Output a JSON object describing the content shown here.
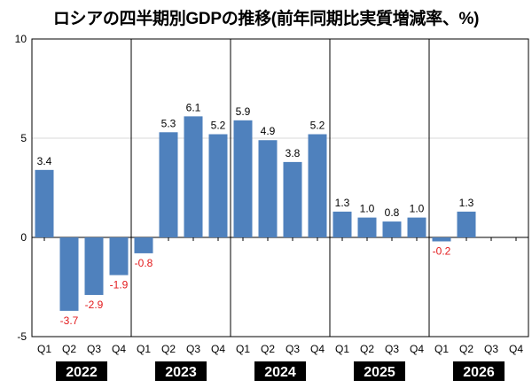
{
  "chart_data": {
    "type": "bar",
    "title": "ロシアの四半期別GDPの推移(前年同期比実質増減率、%)",
    "xlabel": "",
    "ylabel": "",
    "ylim": [
      -5,
      10
    ],
    "yticks": [
      -5,
      0,
      5,
      10
    ],
    "grid": true,
    "legend": "none",
    "years": [
      "2022",
      "2023",
      "2024",
      "2025",
      "2026"
    ],
    "quarters": [
      "Q1",
      "Q2",
      "Q3",
      "Q4"
    ],
    "categories": [
      "2022 Q1",
      "2022 Q2",
      "2022 Q3",
      "2022 Q4",
      "2023 Q1",
      "2023 Q2",
      "2023 Q3",
      "2023 Q4",
      "2024 Q1",
      "2024 Q2",
      "2024 Q3",
      "2024 Q4",
      "2025 Q1",
      "2025 Q2",
      "2025 Q3",
      "2025 Q4",
      "2026 Q1",
      "2026 Q2",
      "2026 Q3",
      "2026 Q4"
    ],
    "values": [
      3.4,
      -3.7,
      -2.9,
      -1.9,
      -0.8,
      5.3,
      6.1,
      5.2,
      5.9,
      4.9,
      3.8,
      5.2,
      1.3,
      1.0,
      0.8,
      1.0,
      -0.2,
      1.3,
      null,
      null
    ],
    "value_labels": [
      "3.4",
      "-3.7",
      "-2.9",
      "-1.9",
      "-0.8",
      "5.3",
      "6.1",
      "5.2",
      "5.9",
      "4.9",
      "3.8",
      "5.2",
      "1.3",
      "1.0",
      "0.8",
      "1.0",
      "-0.2",
      "1.3",
      "",
      ""
    ],
    "colors": {
      "bar": "#4f81bd",
      "negative_label": "#e31a1c",
      "positive_label": "#000000",
      "year_badge_bg": "#000000",
      "year_badge_text": "#ffffff"
    }
  }
}
